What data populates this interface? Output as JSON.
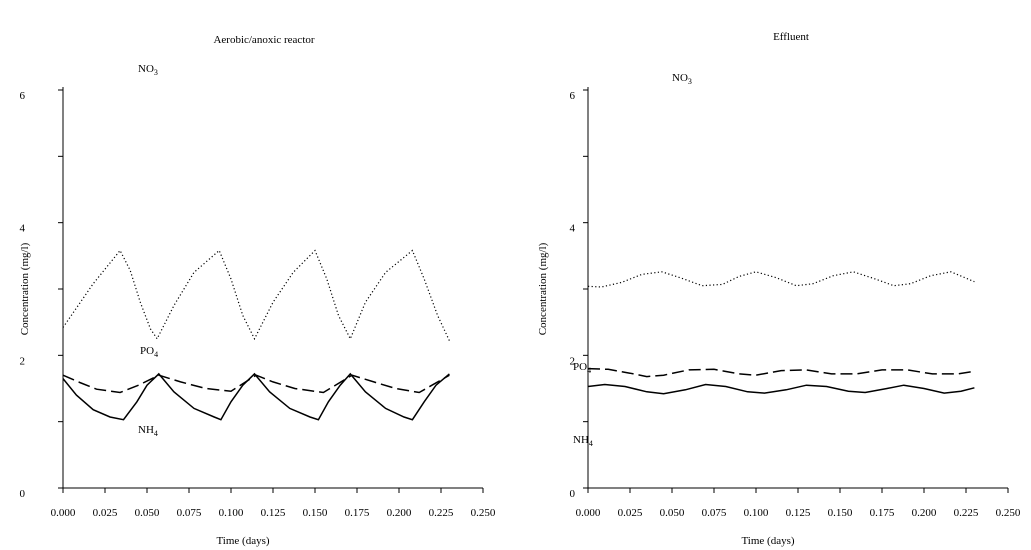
{
  "chart_data": [
    {
      "type": "line",
      "title": "Aerobic/anoxic reactor",
      "xlabel": "Time (days)",
      "ylabel": "Concentration (mg/l)",
      "xlim": [
        0,
        0.25
      ],
      "ylim": [
        0,
        6
      ],
      "x_ticks": [
        "0.000",
        "0.025",
        "0.050",
        "0.075",
        "0.100",
        "0.125",
        "0.150",
        "0.175",
        "0.200",
        "0.225",
        "0.250"
      ],
      "y_ticks": [
        "0",
        "2",
        "4",
        "6"
      ],
      "grid": false,
      "series": [
        {
          "name": "NO3",
          "label_text": "NO",
          "label_sub": "3",
          "style": "dotted",
          "color": "#000000",
          "points": [
            [
              0.0,
              2.42
            ],
            [
              0.018,
              3.08
            ],
            [
              0.034,
              3.58
            ],
            [
              0.04,
              3.28
            ],
            [
              0.046,
              2.8
            ],
            [
              0.052,
              2.4
            ],
            [
              0.056,
              2.25
            ],
            [
              0.066,
              2.75
            ],
            [
              0.078,
              3.25
            ],
            [
              0.093,
              3.58
            ],
            [
              0.1,
              3.15
            ],
            [
              0.107,
              2.6
            ],
            [
              0.114,
              2.25
            ],
            [
              0.125,
              2.8
            ],
            [
              0.137,
              3.25
            ],
            [
              0.15,
              3.58
            ],
            [
              0.157,
              3.15
            ],
            [
              0.164,
              2.6
            ],
            [
              0.171,
              2.25
            ],
            [
              0.18,
              2.8
            ],
            [
              0.192,
              3.25
            ],
            [
              0.208,
              3.58
            ],
            [
              0.215,
              3.15
            ],
            [
              0.223,
              2.6
            ],
            [
              0.23,
              2.22
            ]
          ]
        },
        {
          "name": "PO4",
          "label_text": "PO",
          "label_sub": "4",
          "style": "dashed",
          "color": "#000000",
          "points": [
            [
              0.0,
              1.7
            ],
            [
              0.01,
              1.59
            ],
            [
              0.02,
              1.49
            ],
            [
              0.034,
              1.44
            ],
            [
              0.045,
              1.55
            ],
            [
              0.057,
              1.7
            ],
            [
              0.07,
              1.6
            ],
            [
              0.085,
              1.5
            ],
            [
              0.1,
              1.46
            ],
            [
              0.115,
              1.7
            ],
            [
              0.125,
              1.6
            ],
            [
              0.138,
              1.5
            ],
            [
              0.155,
              1.44
            ],
            [
              0.172,
              1.7
            ],
            [
              0.185,
              1.6
            ],
            [
              0.198,
              1.5
            ],
            [
              0.212,
              1.44
            ],
            [
              0.23,
              1.7
            ]
          ]
        },
        {
          "name": "NH4",
          "label_text": "NH",
          "label_sub": "4",
          "style": "solid",
          "color": "#000000",
          "points": [
            [
              0.0,
              1.65
            ],
            [
              0.008,
              1.4
            ],
            [
              0.018,
              1.18
            ],
            [
              0.028,
              1.07
            ],
            [
              0.036,
              1.03
            ],
            [
              0.044,
              1.3
            ],
            [
              0.05,
              1.55
            ],
            [
              0.057,
              1.72
            ],
            [
              0.066,
              1.45
            ],
            [
              0.078,
              1.2
            ],
            [
              0.09,
              1.07
            ],
            [
              0.094,
              1.03
            ],
            [
              0.1,
              1.3
            ],
            [
              0.107,
              1.55
            ],
            [
              0.114,
              1.72
            ],
            [
              0.123,
              1.45
            ],
            [
              0.135,
              1.2
            ],
            [
              0.147,
              1.07
            ],
            [
              0.152,
              1.03
            ],
            [
              0.158,
              1.3
            ],
            [
              0.165,
              1.55
            ],
            [
              0.171,
              1.72
            ],
            [
              0.18,
              1.45
            ],
            [
              0.192,
              1.2
            ],
            [
              0.203,
              1.07
            ],
            [
              0.208,
              1.03
            ],
            [
              0.215,
              1.3
            ],
            [
              0.222,
              1.55
            ],
            [
              0.23,
              1.72
            ]
          ]
        }
      ]
    },
    {
      "type": "line",
      "title": "Effluent",
      "xlabel": "Time (days)",
      "ylabel": "Concentration (mg/l)",
      "xlim": [
        0,
        0.25
      ],
      "ylim": [
        0,
        6
      ],
      "x_ticks": [
        "0.000",
        "0.025",
        "0.050",
        "0.075",
        "0.100",
        "0.125",
        "0.150",
        "0.175",
        "0.200",
        "0.225",
        "0.250"
      ],
      "y_ticks": [
        "0",
        "2",
        "4",
        "6"
      ],
      "grid": false,
      "series": [
        {
          "name": "NO3",
          "label_text": "NO",
          "label_sub": "3",
          "style": "dotted",
          "color": "#000000",
          "points": [
            [
              0.0,
              3.04
            ],
            [
              0.008,
              3.03
            ],
            [
              0.02,
              3.1
            ],
            [
              0.032,
              3.22
            ],
            [
              0.044,
              3.26
            ],
            [
              0.056,
              3.16
            ],
            [
              0.068,
              3.05
            ],
            [
              0.08,
              3.07
            ],
            [
              0.09,
              3.19
            ],
            [
              0.1,
              3.26
            ],
            [
              0.112,
              3.17
            ],
            [
              0.124,
              3.05
            ],
            [
              0.134,
              3.08
            ],
            [
              0.146,
              3.2
            ],
            [
              0.158,
              3.26
            ],
            [
              0.17,
              3.16
            ],
            [
              0.182,
              3.05
            ],
            [
              0.192,
              3.08
            ],
            [
              0.204,
              3.2
            ],
            [
              0.216,
              3.26
            ],
            [
              0.23,
              3.11
            ]
          ]
        },
        {
          "name": "PO4",
          "label_text": "PO",
          "label_sub": "4",
          "style": "dashed",
          "color": "#000000",
          "points": [
            [
              0.0,
              1.8
            ],
            [
              0.012,
              1.79
            ],
            [
              0.025,
              1.73
            ],
            [
              0.035,
              1.68
            ],
            [
              0.045,
              1.7
            ],
            [
              0.06,
              1.78
            ],
            [
              0.075,
              1.79
            ],
            [
              0.09,
              1.72
            ],
            [
              0.1,
              1.7
            ],
            [
              0.115,
              1.77
            ],
            [
              0.13,
              1.78
            ],
            [
              0.145,
              1.72
            ],
            [
              0.16,
              1.72
            ],
            [
              0.175,
              1.78
            ],
            [
              0.19,
              1.78
            ],
            [
              0.205,
              1.72
            ],
            [
              0.22,
              1.72
            ],
            [
              0.23,
              1.76
            ]
          ]
        },
        {
          "name": "NH4",
          "label_text": "NH",
          "label_sub": "4",
          "style": "solid",
          "color": "#000000",
          "points": [
            [
              0.0,
              1.53
            ],
            [
              0.01,
              1.56
            ],
            [
              0.022,
              1.53
            ],
            [
              0.035,
              1.45
            ],
            [
              0.045,
              1.42
            ],
            [
              0.058,
              1.48
            ],
            [
              0.07,
              1.56
            ],
            [
              0.082,
              1.53
            ],
            [
              0.095,
              1.45
            ],
            [
              0.105,
              1.43
            ],
            [
              0.118,
              1.48
            ],
            [
              0.13,
              1.55
            ],
            [
              0.142,
              1.53
            ],
            [
              0.155,
              1.46
            ],
            [
              0.165,
              1.44
            ],
            [
              0.178,
              1.5
            ],
            [
              0.188,
              1.55
            ],
            [
              0.2,
              1.5
            ],
            [
              0.212,
              1.43
            ],
            [
              0.222,
              1.46
            ],
            [
              0.23,
              1.51
            ]
          ]
        }
      ]
    }
  ]
}
